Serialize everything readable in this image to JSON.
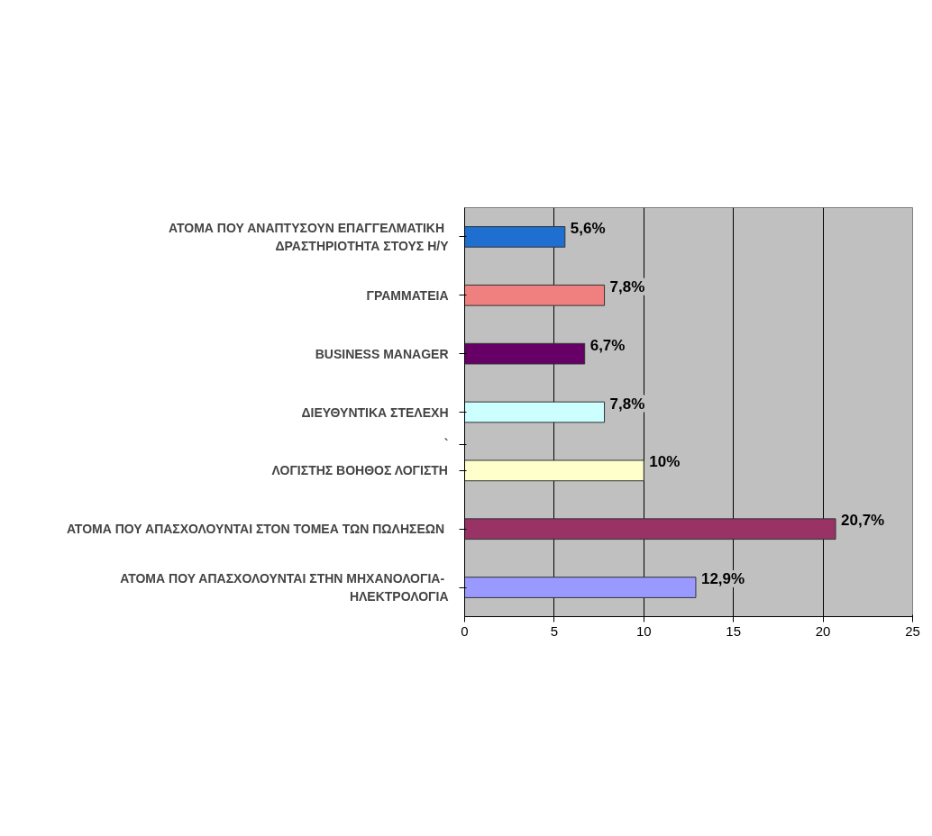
{
  "chart_data": {
    "type": "bar",
    "orientation": "horizontal",
    "categories": [
      "ΑΤΟΜΑ  ΠΟΥ ΑΝΑΠΤΥΣΟΥΝ ΕΠΑΓΓΕΛΜΑΤΙΚΗ ΔΡΑΣΤΗΡΙΟΤΗΤΑ ΣΤΟΥΣ Η/Υ",
      "ΓΡΑΜΜΑΤΕΙΑ",
      "BUSINESS MANAGER",
      "ΔΙΕΥΘΥΝΤΙΚΑ ΣΤΕΛΕΧΗ",
      "ΛΟΓΙΣΤΗΣ ΒΟΗΘΟΣ ΛΟΓΙΣΤΗ",
      "ΑΤΟΜΑ  ΠΟΥ ΑΠΑΣΧΟΛΟΥΝΤΑΙ ΣΤΟΝ ΤΟΜΕΑ ΤΩΝ ΠΩΛΗΣΕΩΝ",
      "ΑΤΟΜΑ  ΠΟΥ ΑΠΑΣΧΟΛΟΥΝΤΑΙ ΣΤΗΝ ΜΗΧΑΝΟΛΟΓΙΑ-ΗΛΕΚΤΡΟΛΟΓΙΑ"
    ],
    "values": [
      5.6,
      7.8,
      6.7,
      7.8,
      10,
      20.7,
      12.9
    ],
    "value_labels": [
      "5,6%",
      "7,8%",
      "6,7%",
      "7,8%",
      "10%",
      "20,7%",
      "12,9%"
    ],
    "colors": [
      "#1e6fd0",
      "#f08080",
      "#660066",
      "#ccffff",
      "#ffffcc",
      "#993366",
      "#9999ff"
    ],
    "xlim": [
      0,
      25
    ],
    "xticks": [
      0,
      5,
      10,
      15,
      20,
      25
    ],
    "grid": "x",
    "annotations": [
      "`"
    ]
  }
}
